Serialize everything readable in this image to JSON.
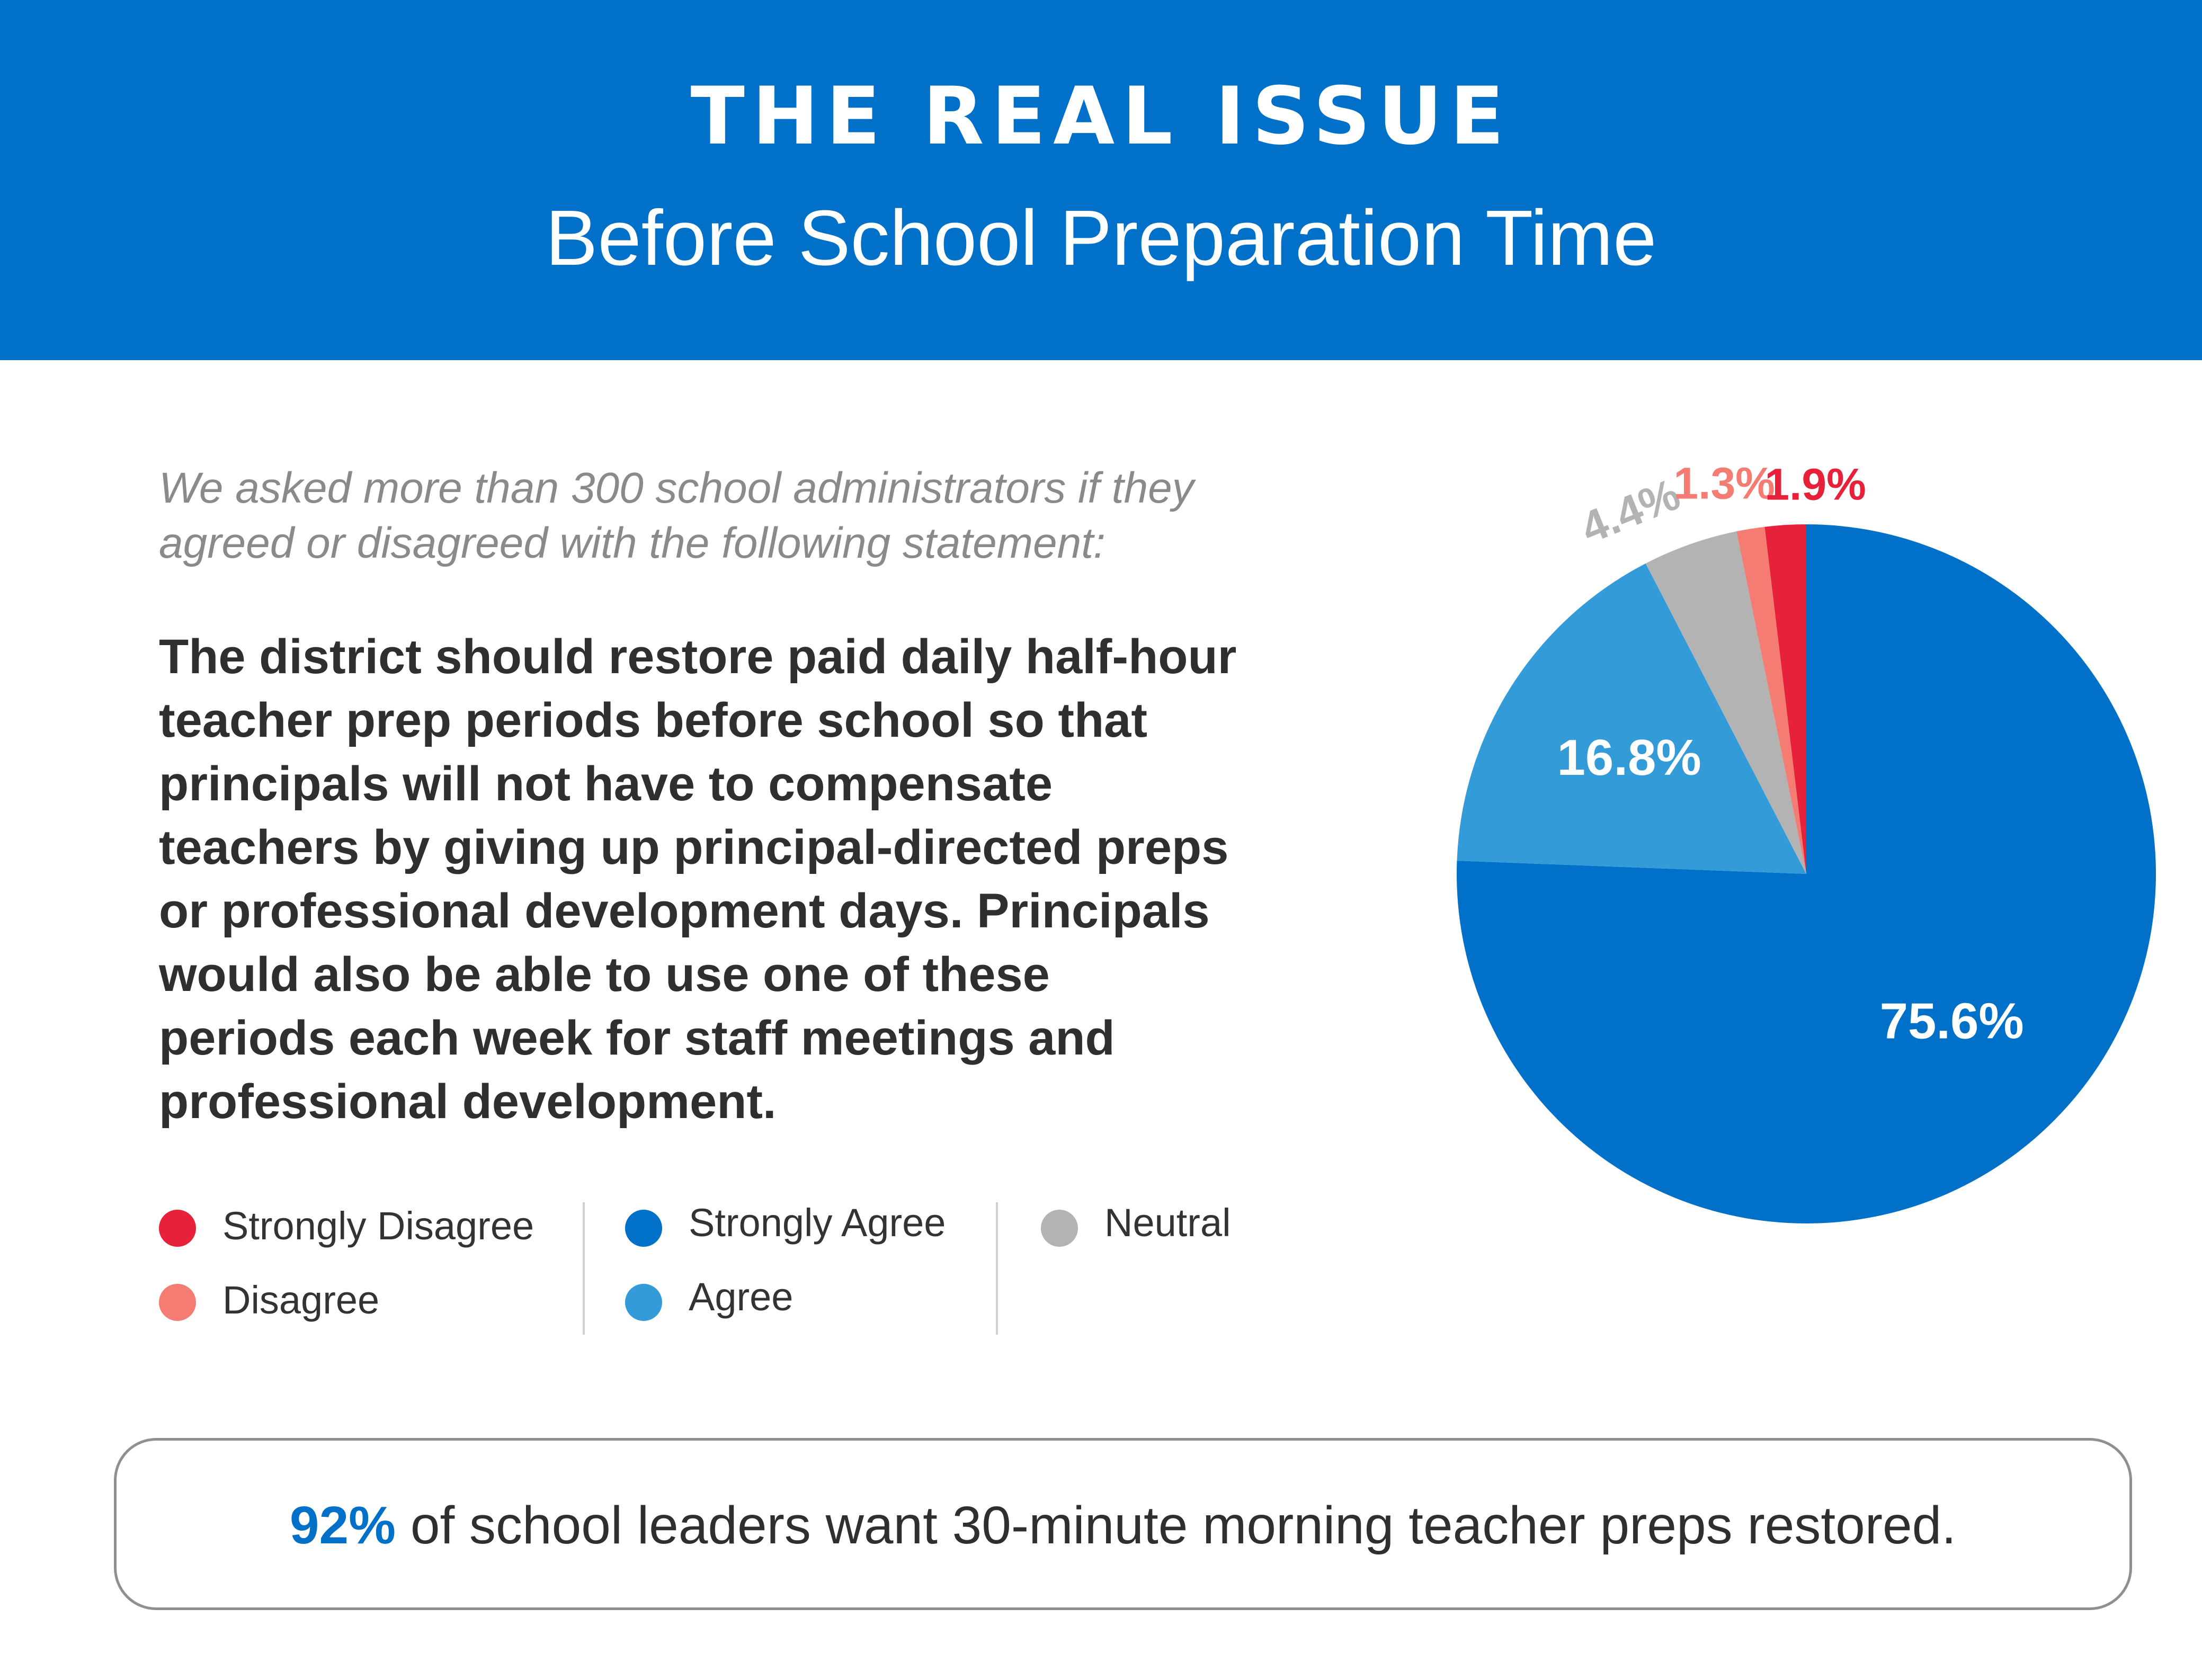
{
  "header": {
    "title": "THE REAL ISSUE",
    "subtitle": "Before School Preparation Time"
  },
  "intro": {
    "lines": [
      "We asked more than 300 school administrators if they",
      "agreed or disagreed with the following statement:"
    ]
  },
  "statement": {
    "lines": [
      "The district should restore paid daily half-hour",
      "teacher prep periods before school so that",
      "principals will not have to compensate",
      "teachers by giving up principal-directed preps",
      "or professional development days. Principals",
      "would also be able to use one of these",
      "periods each week for staff meetings and",
      "professional development."
    ]
  },
  "legend": {
    "columns": [
      [
        {
          "label": "Strongly Disagree",
          "color": "#e8213a"
        },
        {
          "label": "Disagree",
          "color": "#f47c72"
        }
      ],
      [
        {
          "label": "Strongly Agree",
          "color": "#0070c8"
        },
        {
          "label": "Agree",
          "color": "#339bd8"
        }
      ],
      [
        {
          "label": "Neutral",
          "color": "#b3b3b3"
        }
      ]
    ]
  },
  "chart_data": {
    "type": "pie",
    "slices": [
      {
        "label": "Strongly Agree",
        "value": 75.6,
        "display": "75.6%",
        "color": "#0070c8",
        "label_color": "#ffffff"
      },
      {
        "label": "Agree",
        "value": 16.8,
        "display": "16.8%",
        "color": "#339bd8",
        "label_color": "#ffffff"
      },
      {
        "label": "Neutral",
        "value": 4.4,
        "display": "4.4%",
        "color": "#b3b3b3",
        "label_color": "#b3b3b3"
      },
      {
        "label": "Disagree",
        "value": 1.3,
        "display": "1.3%",
        "color": "#f47c72",
        "label_color": "#f47c72"
      },
      {
        "label": "Strongly Disagree",
        "value": 1.9,
        "display": "1.9%",
        "color": "#e8213a",
        "label_color": "#e8213a"
      }
    ],
    "order": "clockwise from top"
  },
  "callout": {
    "emphasis": "92%",
    "text": " of school leaders want 30-minute morning teacher preps restored."
  }
}
